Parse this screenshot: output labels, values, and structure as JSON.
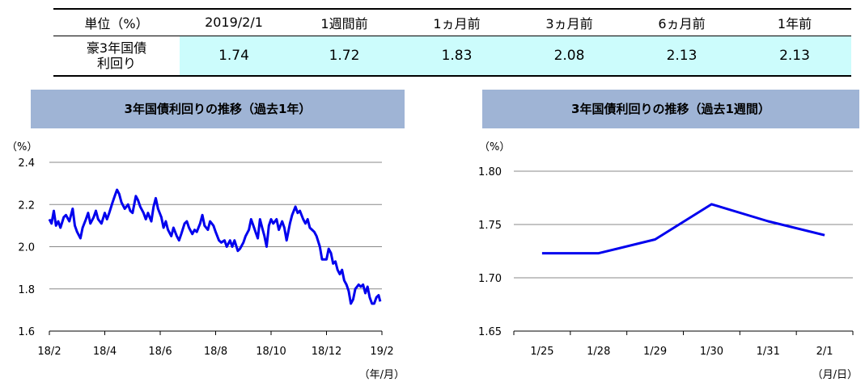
{
  "summary_table": {
    "headers": [
      "単位（%）",
      "2019/2/1",
      "1週間前",
      "1ヵ月前",
      "3ヵ月前",
      "6ヵ月前",
      "1年前"
    ],
    "row_label": "豪3年国債\n利回り",
    "values": [
      "1.74",
      "1.72",
      "1.83",
      "2.08",
      "2.13",
      "2.13"
    ]
  },
  "colors": {
    "line": "#0000ee",
    "title_bg": "#9fb4d5",
    "cell_bg": "#ccfcfc",
    "grid": "#888888"
  },
  "chart_data": [
    {
      "type": "line",
      "title": "3年国債利回りの推移（過去1年）",
      "ylabel": "（%）",
      "xlabel": "（年/月）",
      "ylim": [
        1.6,
        2.4
      ],
      "yticks": [
        "1.6",
        "1.8",
        "2.0",
        "2.2",
        "2.4"
      ],
      "categories": [
        "18/2",
        "18/4",
        "18/6",
        "18/8",
        "18/10",
        "18/12",
        "19/2"
      ],
      "grid": true,
      "series": [
        {
          "points": [
            [
              0.0,
              2.13
            ],
            [
              0.04,
              2.11
            ],
            [
              0.08,
              2.17
            ],
            [
              0.12,
              2.1
            ],
            [
              0.16,
              2.12
            ],
            [
              0.2,
              2.09
            ],
            [
              0.26,
              2.14
            ],
            [
              0.3,
              2.15
            ],
            [
              0.36,
              2.12
            ],
            [
              0.42,
              2.18
            ],
            [
              0.46,
              2.1
            ],
            [
              0.5,
              2.07
            ],
            [
              0.56,
              2.04
            ],
            [
              0.6,
              2.09
            ],
            [
              0.66,
              2.13
            ],
            [
              0.7,
              2.16
            ],
            [
              0.74,
              2.11
            ],
            [
              0.8,
              2.14
            ],
            [
              0.84,
              2.17
            ],
            [
              0.88,
              2.13
            ],
            [
              0.94,
              2.11
            ],
            [
              1.0,
              2.16
            ],
            [
              1.04,
              2.13
            ],
            [
              1.08,
              2.16
            ],
            [
              1.14,
              2.21
            ],
            [
              1.18,
              2.24
            ],
            [
              1.22,
              2.27
            ],
            [
              1.26,
              2.25
            ],
            [
              1.3,
              2.21
            ],
            [
              1.36,
              2.18
            ],
            [
              1.42,
              2.2
            ],
            [
              1.46,
              2.17
            ],
            [
              1.5,
              2.16
            ],
            [
              1.56,
              2.24
            ],
            [
              1.6,
              2.22
            ],
            [
              1.64,
              2.19
            ],
            [
              1.7,
              2.16
            ],
            [
              1.74,
              2.13
            ],
            [
              1.78,
              2.16
            ],
            [
              1.84,
              2.12
            ],
            [
              1.88,
              2.19
            ],
            [
              1.92,
              2.23
            ],
            [
              1.96,
              2.18
            ],
            [
              2.02,
              2.14
            ],
            [
              2.06,
              2.09
            ],
            [
              2.1,
              2.12
            ],
            [
              2.14,
              2.08
            ],
            [
              2.2,
              2.05
            ],
            [
              2.24,
              2.09
            ],
            [
              2.3,
              2.05
            ],
            [
              2.34,
              2.03
            ],
            [
              2.38,
              2.06
            ],
            [
              2.44,
              2.11
            ],
            [
              2.48,
              2.12
            ],
            [
              2.52,
              2.09
            ],
            [
              2.58,
              2.06
            ],
            [
              2.62,
              2.08
            ],
            [
              2.66,
              2.07
            ],
            [
              2.72,
              2.11
            ],
            [
              2.76,
              2.15
            ],
            [
              2.8,
              2.1
            ],
            [
              2.86,
              2.08
            ],
            [
              2.9,
              2.12
            ],
            [
              2.96,
              2.1
            ],
            [
              3.0,
              2.07
            ],
            [
              3.06,
              2.03
            ],
            [
              3.1,
              2.02
            ],
            [
              3.16,
              2.03
            ],
            [
              3.2,
              2.0
            ],
            [
              3.26,
              2.03
            ],
            [
              3.3,
              2.0
            ],
            [
              3.34,
              2.03
            ],
            [
              3.4,
              1.98
            ],
            [
              3.44,
              1.99
            ],
            [
              3.5,
              2.02
            ],
            [
              3.54,
              2.05
            ],
            [
              3.6,
              2.08
            ],
            [
              3.64,
              2.13
            ],
            [
              3.68,
              2.1
            ],
            [
              3.72,
              2.07
            ],
            [
              3.76,
              2.04
            ],
            [
              3.8,
              2.13
            ],
            [
              3.84,
              2.09
            ],
            [
              3.88,
              2.05
            ],
            [
              3.92,
              2.0
            ],
            [
              3.96,
              2.1
            ],
            [
              4.0,
              2.13
            ],
            [
              4.04,
              2.11
            ],
            [
              4.1,
              2.13
            ],
            [
              4.14,
              2.08
            ],
            [
              4.2,
              2.12
            ],
            [
              4.24,
              2.09
            ],
            [
              4.28,
              2.03
            ],
            [
              4.34,
              2.11
            ],
            [
              4.38,
              2.15
            ],
            [
              4.44,
              2.19
            ],
            [
              4.48,
              2.16
            ],
            [
              4.52,
              2.17
            ],
            [
              4.58,
              2.13
            ],
            [
              4.62,
              2.11
            ],
            [
              4.66,
              2.13
            ],
            [
              4.7,
              2.09
            ],
            [
              4.74,
              2.08
            ],
            [
              4.78,
              2.07
            ],
            [
              4.82,
              2.05
            ],
            [
              4.88,
              2.0
            ],
            [
              4.92,
              1.94
            ],
            [
              5.0,
              1.94
            ],
            [
              5.04,
              1.99
            ],
            [
              5.08,
              1.97
            ],
            [
              5.12,
              1.92
            ],
            [
              5.16,
              1.93
            ],
            [
              5.2,
              1.89
            ],
            [
              5.24,
              1.87
            ],
            [
              5.28,
              1.89
            ],
            [
              5.32,
              1.84
            ],
            [
              5.36,
              1.82
            ],
            [
              5.4,
              1.79
            ],
            [
              5.44,
              1.73
            ],
            [
              5.48,
              1.75
            ],
            [
              5.52,
              1.8
            ],
            [
              5.58,
              1.82
            ],
            [
              5.62,
              1.81
            ],
            [
              5.66,
              1.82
            ],
            [
              5.7,
              1.78
            ],
            [
              5.74,
              1.81
            ],
            [
              5.78,
              1.76
            ],
            [
              5.82,
              1.73
            ],
            [
              5.86,
              1.73
            ],
            [
              5.9,
              1.76
            ],
            [
              5.94,
              1.77
            ],
            [
              5.97,
              1.74
            ]
          ]
        }
      ]
    },
    {
      "type": "line",
      "title": "3年国債利回りの推移（過去1週間）",
      "ylabel": "（%）",
      "xlabel": "（月/日）",
      "ylim": [
        1.65,
        1.8
      ],
      "yticks": [
        "1.65",
        "1.70",
        "1.75",
        "1.80"
      ],
      "categories": [
        "1/25",
        "1/28",
        "1/29",
        "1/30",
        "1/31",
        "2/1"
      ],
      "grid": true,
      "series": [
        {
          "values": [
            1.723,
            1.723,
            1.736,
            1.769,
            1.753,
            1.74
          ]
        }
      ]
    }
  ]
}
